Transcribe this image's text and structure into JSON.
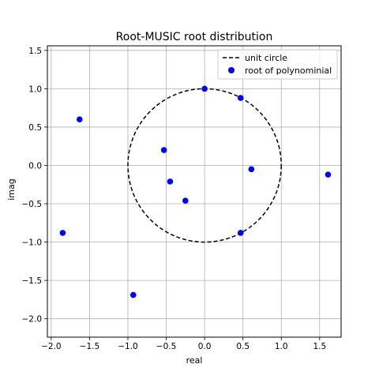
{
  "chart_data": {
    "type": "scatter",
    "title": "Root-MUSIC root distribution",
    "xlabel": "real",
    "ylabel": "imag",
    "xlim": [
      -2.05,
      1.78
    ],
    "ylim": [
      -2.24,
      1.56
    ],
    "xticks": [
      -2.0,
      -1.5,
      -1.0,
      -0.5,
      0.0,
      0.5,
      1.0,
      1.5
    ],
    "xtick_labels": [
      "−2.0",
      "−1.5",
      "−1.0",
      "−0.5",
      "0.0",
      "0.5",
      "1.0",
      "1.5"
    ],
    "yticks": [
      1.5,
      1.0,
      0.5,
      0.0,
      -0.5,
      -1.0,
      -1.5,
      -2.0
    ],
    "ytick_labels": [
      "1.5",
      "1.0",
      "0.5",
      "0.0",
      "−0.5",
      "−1.0",
      "−1.5",
      "−2.0"
    ],
    "grid": true,
    "legend_position": "top-right",
    "series": [
      {
        "name": "unit circle",
        "kind": "line",
        "style": "dashed",
        "color": "#000000",
        "circle": {
          "cx": 0,
          "cy": 0,
          "r": 1
        }
      },
      {
        "name": "root of polynominial",
        "kind": "scatter",
        "color": "#0000ff",
        "points": [
          {
            "x": 0.0,
            "y": 1.0
          },
          {
            "x": 0.47,
            "y": 0.88
          },
          {
            "x": -1.63,
            "y": 0.6
          },
          {
            "x": -0.53,
            "y": 0.2
          },
          {
            "x": 0.61,
            "y": -0.05
          },
          {
            "x": 1.61,
            "y": -0.12
          },
          {
            "x": -0.45,
            "y": -0.21
          },
          {
            "x": -0.25,
            "y": -0.46
          },
          {
            "x": -1.85,
            "y": -0.88
          },
          {
            "x": 0.47,
            "y": -0.88
          },
          {
            "x": -0.93,
            "y": -1.69
          }
        ]
      }
    ]
  }
}
